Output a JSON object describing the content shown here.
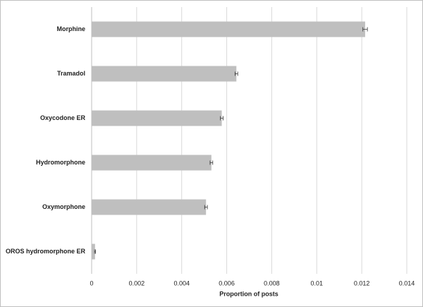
{
  "chart_data": {
    "type": "barh",
    "categories": [
      "Morphine",
      "Tramadol",
      "Oxycodone ER",
      "Hydromorphone",
      "Oxymorphone",
      "OROS hydromorphone ER"
    ],
    "values": [
      0.01215,
      0.00643,
      0.00578,
      0.00532,
      0.00508,
      0.00015
    ],
    "errors": [
      0.0001,
      6e-05,
      6e-05,
      6e-05,
      6e-05,
      2e-05
    ],
    "color": "#bfbfbf",
    "x_label": "Proportion of posts",
    "xlim": [
      0,
      0.014
    ],
    "xticks": [
      0,
      0.002,
      0.004,
      0.006,
      0.008,
      0.01,
      0.012,
      0.014
    ],
    "grid": true
  }
}
